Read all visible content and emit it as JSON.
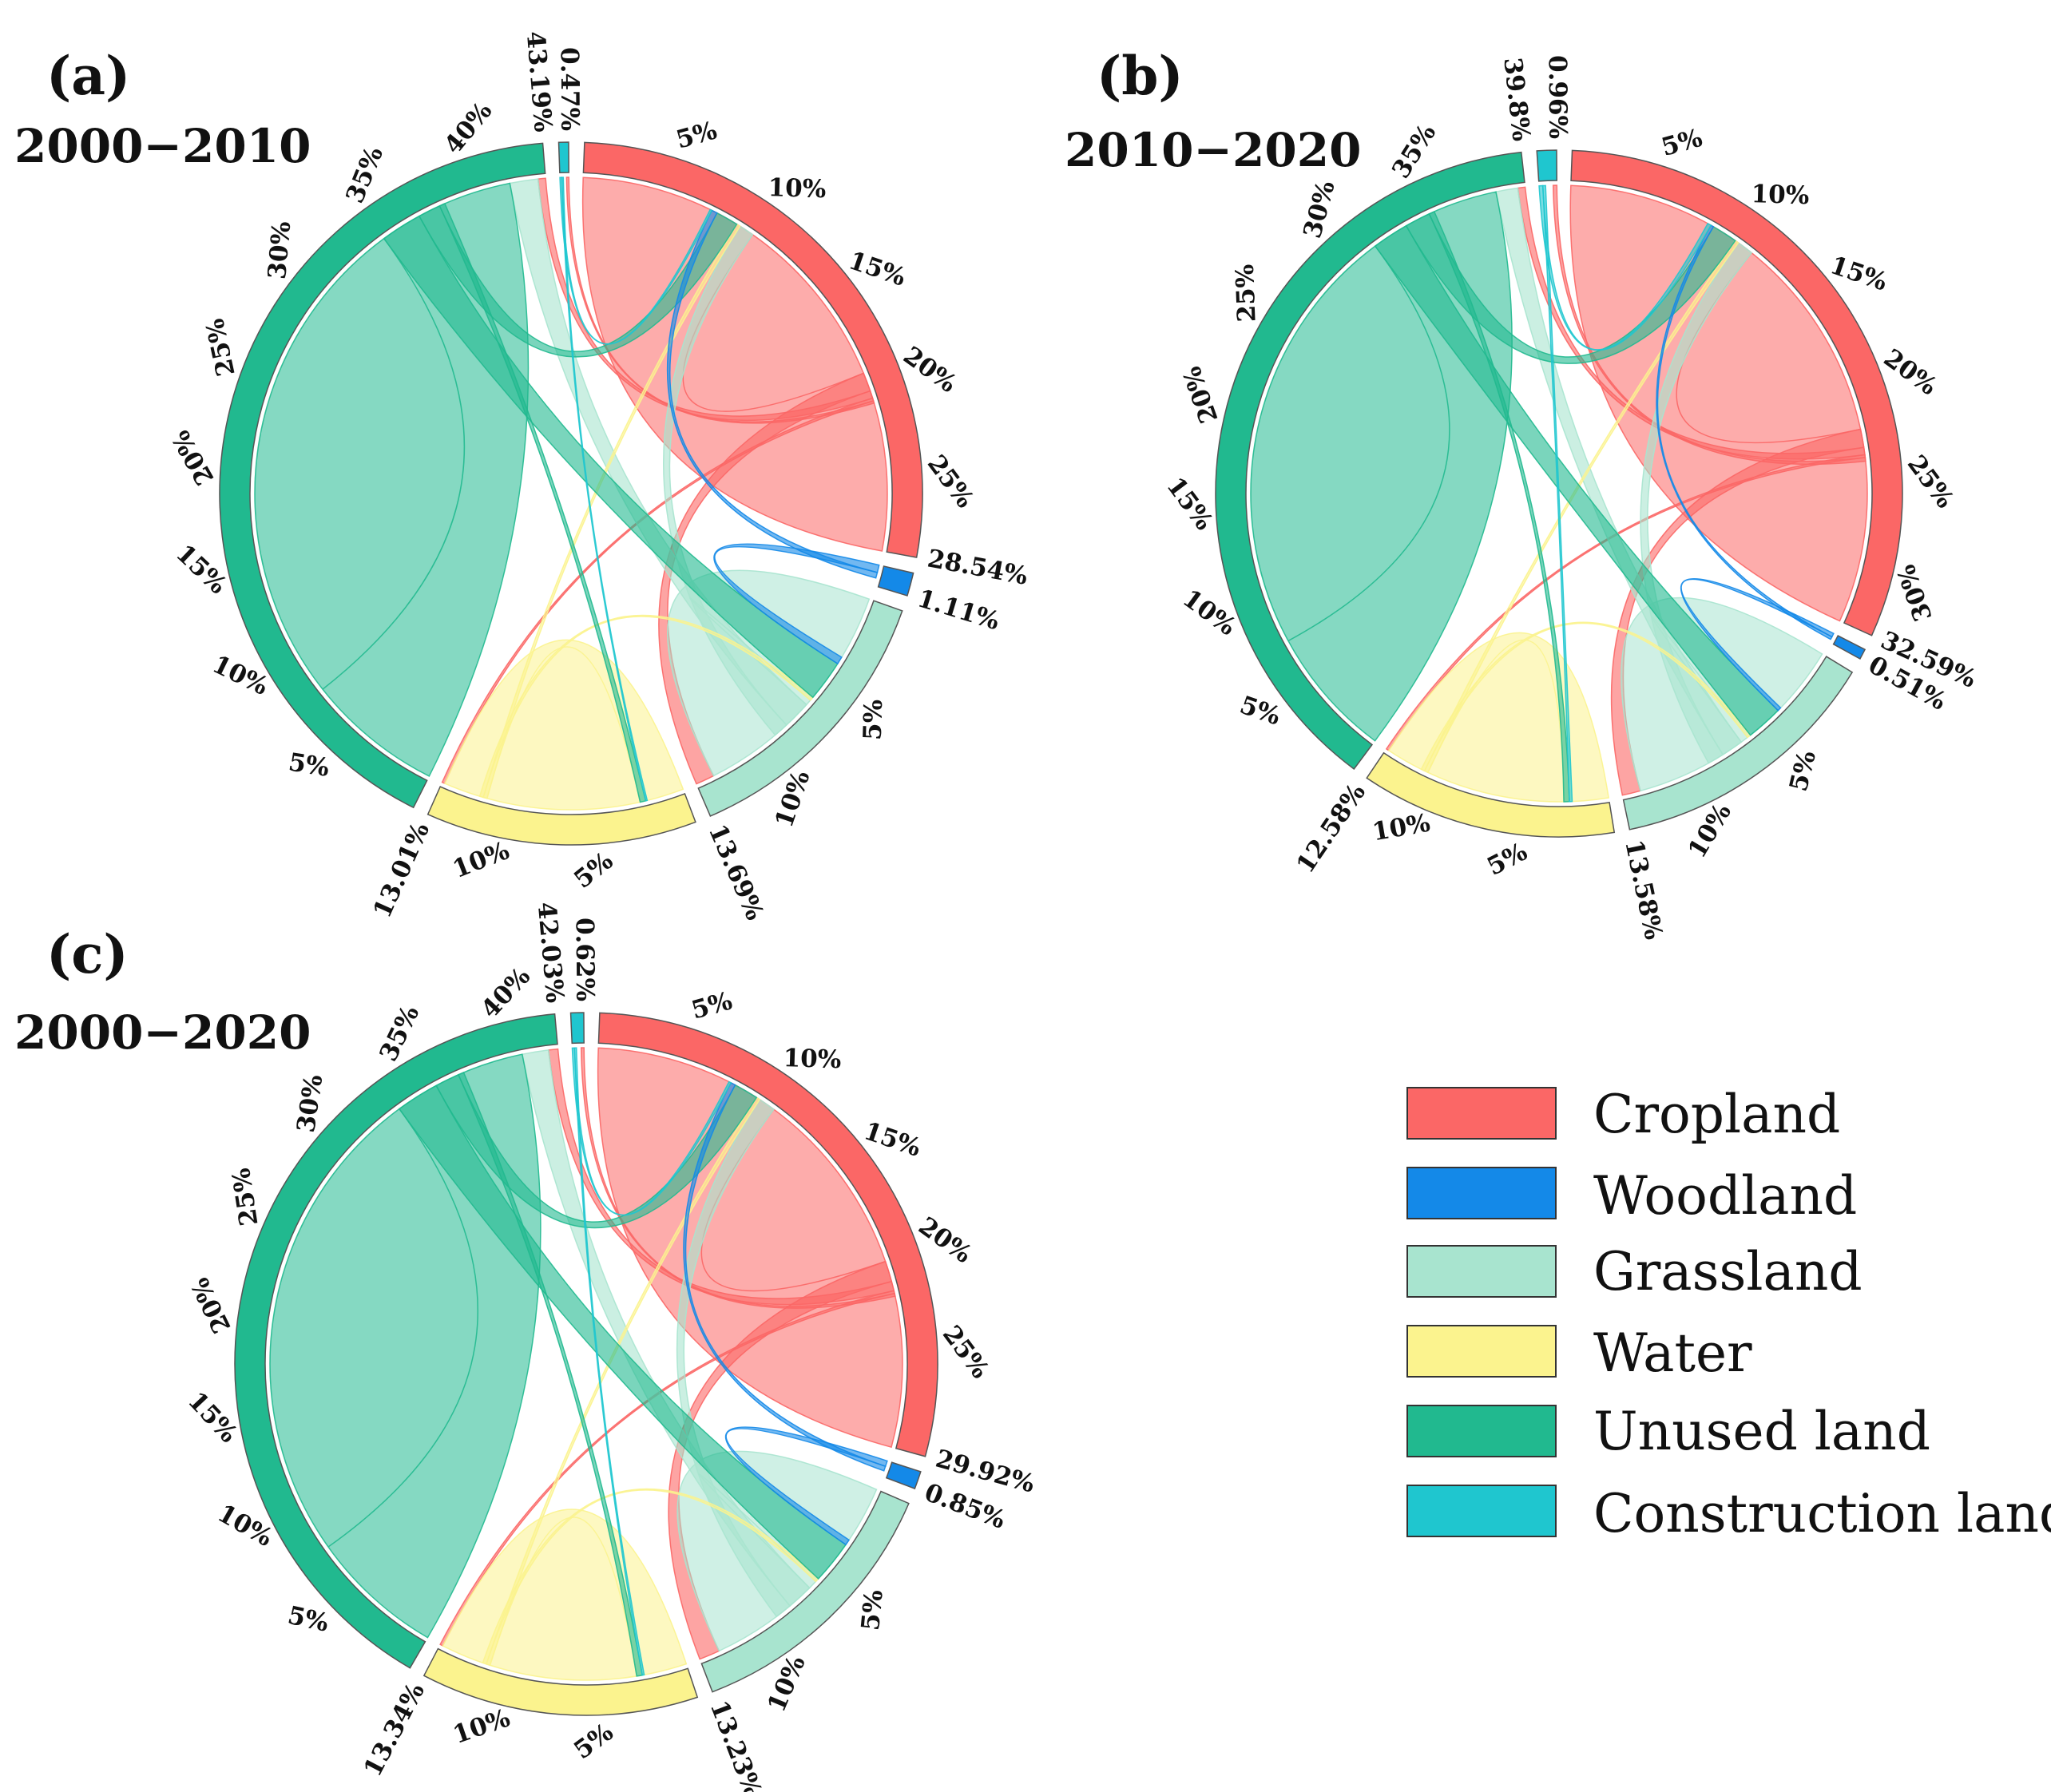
{
  "colors": {
    "Cropland": "#fb6766",
    "Woodland": "#1489e8",
    "Grassland": "#a8e4cf",
    "Water": "#fbf38e",
    "Unused land": "#21b98f",
    "Construction land": "#1fc6cf"
  },
  "legend": {
    "items": [
      "Cropland",
      "Woodland",
      "Grassland",
      "Water",
      "Unused land",
      "Construction land"
    ]
  },
  "chart_data": [
    {
      "type": "chord",
      "panel": "(a)",
      "title": "2000−2010",
      "categories": [
        "Cropland",
        "Woodland",
        "Grassland",
        "Water",
        "Unused land",
        "Construction land"
      ],
      "shares_percent": [
        28.54,
        1.11,
        13.69,
        13.01,
        43.19,
        0.47
      ],
      "total_labels": [
        "28.54%",
        "1.11%",
        "13.69%",
        "13.01%",
        "43.19%",
        "0.47%"
      ],
      "tick_labels": {
        "Cropland": [
          "5%",
          "10%",
          "15%",
          "20%",
          "25%"
        ],
        "Grassland": [
          "5%",
          "10%"
        ],
        "Water": [
          "5%",
          "10%"
        ],
        "Unused land": [
          "5%",
          "10%",
          "15%",
          "20%",
          "25%",
          "30%",
          "35%",
          "40%"
        ]
      },
      "flows": [
        {
          "from": "Cropland",
          "to": "Cropland",
          "value": 19.0
        },
        {
          "from": "Cropland",
          "to": "Grassland",
          "value": 1.0
        },
        {
          "from": "Cropland",
          "to": "Unused land",
          "value": 0.4
        },
        {
          "from": "Cropland",
          "to": "Water",
          "value": 0.15
        },
        {
          "from": "Cropland",
          "to": "Construction land",
          "value": 0.12
        },
        {
          "from": "Grassland",
          "to": "Grassland",
          "value": 6.5
        },
        {
          "from": "Grassland",
          "to": "Unused land",
          "value": 1.5
        },
        {
          "from": "Grassland",
          "to": "Cropland",
          "value": 0.8
        },
        {
          "from": "Water",
          "to": "Water",
          "value": 10.5
        },
        {
          "from": "Water",
          "to": "Cropland",
          "value": 0.2
        },
        {
          "from": "Water",
          "to": "Grassland",
          "value": 0.2
        },
        {
          "from": "Unused land",
          "to": "Unused land",
          "value": 34.0
        },
        {
          "from": "Unused land",
          "to": "Grassland",
          "value": 2.2
        },
        {
          "from": "Unused land",
          "to": "Cropland",
          "value": 1.2
        },
        {
          "from": "Unused land",
          "to": "Water",
          "value": 0.3
        },
        {
          "from": "Woodland",
          "to": "Grassland",
          "value": 0.4
        },
        {
          "from": "Woodland",
          "to": "Cropland",
          "value": 0.3
        },
        {
          "from": "Construction land",
          "to": "Cropland",
          "value": 0.1
        },
        {
          "from": "Construction land",
          "to": "Water",
          "value": 0.08
        }
      ]
    },
    {
      "type": "chord",
      "panel": "(b)",
      "title": "2010−2020",
      "categories": [
        "Cropland",
        "Woodland",
        "Grassland",
        "Water",
        "Unused land",
        "Construction land"
      ],
      "shares_percent": [
        32.59,
        0.51,
        13.58,
        12.58,
        39.8,
        0.96
      ],
      "total_labels": [
        "32.59%",
        "0.51%",
        "13.58%",
        "12.58%",
        "39.8%",
        "0.96%"
      ],
      "tick_labels": {
        "Cropland": [
          "5%",
          "10%",
          "15%",
          "20%",
          "25%",
          "30%"
        ],
        "Grassland": [
          "5%",
          "10%"
        ],
        "Water": [
          "5%",
          "10%"
        ],
        "Unused land": [
          "5%",
          "10%",
          "15%",
          "20%",
          "25%",
          "30%",
          "35%"
        ]
      },
      "flows": [
        {
          "from": "Cropland",
          "to": "Cropland",
          "value": 22.0
        },
        {
          "from": "Cropland",
          "to": "Grassland",
          "value": 1.0
        },
        {
          "from": "Cropland",
          "to": "Unused land",
          "value": 0.4
        },
        {
          "from": "Cropland",
          "to": "Water",
          "value": 0.15
        },
        {
          "from": "Cropland",
          "to": "Construction land",
          "value": 0.2
        },
        {
          "from": "Grassland",
          "to": "Grassland",
          "value": 6.5
        },
        {
          "from": "Grassland",
          "to": "Unused land",
          "value": 1.2
        },
        {
          "from": "Grassland",
          "to": "Cropland",
          "value": 0.9
        },
        {
          "from": "Water",
          "to": "Water",
          "value": 10.0
        },
        {
          "from": "Water",
          "to": "Cropland",
          "value": 0.2
        },
        {
          "from": "Water",
          "to": "Grassland",
          "value": 0.2
        },
        {
          "from": "Unused land",
          "to": "Unused land",
          "value": 31.0
        },
        {
          "from": "Unused land",
          "to": "Grassland",
          "value": 2.0
        },
        {
          "from": "Unused land",
          "to": "Cropland",
          "value": 1.4
        },
        {
          "from": "Unused land",
          "to": "Water",
          "value": 0.3
        },
        {
          "from": "Woodland",
          "to": "Grassland",
          "value": 0.2
        },
        {
          "from": "Woodland",
          "to": "Cropland",
          "value": 0.15
        },
        {
          "from": "Construction land",
          "to": "Cropland",
          "value": 0.2
        },
        {
          "from": "Construction land",
          "to": "Water",
          "value": 0.15
        }
      ]
    },
    {
      "type": "chord",
      "panel": "(c)",
      "title": "2000−2020",
      "categories": [
        "Cropland",
        "Woodland",
        "Grassland",
        "Water",
        "Unused land",
        "Construction land"
      ],
      "shares_percent": [
        29.92,
        0.85,
        13.23,
        13.34,
        42.03,
        0.62
      ],
      "total_labels": [
        "29.92%",
        "0.85%",
        "13.23%",
        "13.34%",
        "42.03%",
        "0.62%"
      ],
      "tick_labels": {
        "Cropland": [
          "5%",
          "10%",
          "15%",
          "20%",
          "25%"
        ],
        "Grassland": [
          "5%",
          "10%"
        ],
        "Water": [
          "5%",
          "10%"
        ],
        "Unused land": [
          "5%",
          "10%",
          "15%",
          "20%",
          "25%",
          "30%",
          "35%",
          "40%"
        ]
      },
      "flows": [
        {
          "from": "Cropland",
          "to": "Cropland",
          "value": 20.0
        },
        {
          "from": "Cropland",
          "to": "Grassland",
          "value": 1.1
        },
        {
          "from": "Cropland",
          "to": "Unused land",
          "value": 0.5
        },
        {
          "from": "Cropland",
          "to": "Water",
          "value": 0.15
        },
        {
          "from": "Cropland",
          "to": "Construction land",
          "value": 0.15
        },
        {
          "from": "Grassland",
          "to": "Grassland",
          "value": 6.3
        },
        {
          "from": "Grassland",
          "to": "Unused land",
          "value": 1.4
        },
        {
          "from": "Grassland",
          "to": "Cropland",
          "value": 0.9
        },
        {
          "from": "Water",
          "to": "Water",
          "value": 10.5
        },
        {
          "from": "Water",
          "to": "Cropland",
          "value": 0.2
        },
        {
          "from": "Water",
          "to": "Grassland",
          "value": 0.2
        },
        {
          "from": "Unused land",
          "to": "Unused land",
          "value": 33.0
        },
        {
          "from": "Unused land",
          "to": "Grassland",
          "value": 2.3
        },
        {
          "from": "Unused land",
          "to": "Cropland",
          "value": 1.3
        },
        {
          "from": "Unused land",
          "to": "Water",
          "value": 0.3
        },
        {
          "from": "Woodland",
          "to": "Grassland",
          "value": 0.3
        },
        {
          "from": "Woodland",
          "to": "Cropland",
          "value": 0.25
        },
        {
          "from": "Construction land",
          "to": "Cropland",
          "value": 0.12
        },
        {
          "from": "Construction land",
          "to": "Water",
          "value": 0.1
        }
      ]
    }
  ]
}
